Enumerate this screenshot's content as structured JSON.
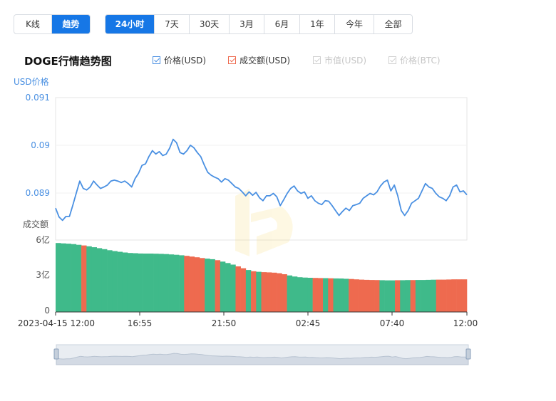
{
  "chart_type_tabs": [
    {
      "label": "K线",
      "active": false
    },
    {
      "label": "趋势",
      "active": true
    }
  ],
  "range_tabs": [
    {
      "label": "24小时",
      "active": true
    },
    {
      "label": "7天",
      "active": false
    },
    {
      "label": "30天",
      "active": false
    },
    {
      "label": "3月",
      "active": false
    },
    {
      "label": "6月",
      "active": false
    },
    {
      "label": "1年",
      "active": false
    },
    {
      "label": "今年",
      "active": false
    },
    {
      "label": "全部",
      "active": false
    }
  ],
  "chart_title": "DOGE行情趋势图",
  "legend": [
    {
      "label": "价格(USD)",
      "checked": true,
      "color": "#4a90e2"
    },
    {
      "label": "成交额(USD)",
      "checked": true,
      "color": "#ee6a4f"
    },
    {
      "label": "市值(USD)",
      "checked": false,
      "color": "#cccccc"
    },
    {
      "label": "价格(BTC)",
      "checked": false,
      "color": "#cccccc"
    }
  ],
  "colors": {
    "price_line": "#4a90e2",
    "volume_up": "#3fba8a",
    "volume_down": "#ee6a4f",
    "accent": "#1677e6",
    "navigator_fill": "#d8dfe8"
  },
  "chart_data": {
    "type": "line",
    "x_tick_labels": [
      "2023-04-15 12:00",
      "16:55",
      "21:50",
      "02:45",
      "07:40",
      "12:00"
    ],
    "price_axis": {
      "label": "USD价格",
      "ticks": [
        "0.091",
        "0.09",
        "0.089"
      ],
      "ylim": [
        0.0881,
        0.091
      ]
    },
    "volume_axis": {
      "label": "成交额",
      "ticks": [
        "6亿",
        "3亿",
        "0"
      ],
      "ylim": [
        0,
        600000000
      ]
    },
    "series": [
      {
        "name": "价格(USD)",
        "values": [
          0.08875,
          0.08857,
          0.0885,
          0.08858,
          0.08858,
          0.08881,
          0.08906,
          0.0893,
          0.08915,
          0.08912,
          0.08918,
          0.0893,
          0.08922,
          0.08915,
          0.08918,
          0.08922,
          0.0893,
          0.08932,
          0.0893,
          0.08927,
          0.0893,
          0.08925,
          0.08918,
          0.08935,
          0.08946,
          0.08962,
          0.08965,
          0.0898,
          0.08992,
          0.08985,
          0.0899,
          0.08982,
          0.08985,
          0.08997,
          0.09015,
          0.09008,
          0.08988,
          0.08985,
          0.08992,
          0.09003,
          0.08998,
          0.08988,
          0.0898,
          0.08963,
          0.08948,
          0.08942,
          0.08938,
          0.08935,
          0.08928,
          0.08935,
          0.08932,
          0.08925,
          0.08918,
          0.08915,
          0.08908,
          0.089,
          0.08908,
          0.08901,
          0.08907,
          0.08896,
          0.0889,
          0.089,
          0.089,
          0.08905,
          0.08898,
          0.0888,
          0.08892,
          0.08905,
          0.08915,
          0.0892,
          0.0891,
          0.08905,
          0.08908,
          0.08895,
          0.089,
          0.0889,
          0.08885,
          0.08882,
          0.0889,
          0.08889,
          0.0888,
          0.0887,
          0.0886,
          0.08868,
          0.08875,
          0.0887,
          0.0888,
          0.08882,
          0.08885,
          0.08895,
          0.089,
          0.08905,
          0.08902,
          0.08908,
          0.0892,
          0.08928,
          0.08932,
          0.0891,
          0.08922,
          0.089,
          0.0887,
          0.0886,
          0.0887,
          0.08885,
          0.0889,
          0.08895,
          0.0891,
          0.08925,
          0.08918,
          0.08915,
          0.08905,
          0.08898,
          0.08895,
          0.0889,
          0.089,
          0.08918,
          0.08922,
          0.08908,
          0.0891,
          0.08902
        ]
      },
      {
        "name": "成交额(USD)",
        "values": [
          575000000,
          572000000,
          570000000,
          566000000,
          560000000,
          555000000,
          548000000,
          540000000,
          532000000,
          524000000,
          515000000,
          508000000,
          502000000,
          496000000,
          492000000,
          490000000,
          488000000,
          487000000,
          487000000,
          486000000,
          485000000,
          483000000,
          480000000,
          477000000,
          473000000,
          468000000,
          462000000,
          456000000,
          450000000,
          445000000,
          440000000,
          432000000,
          420000000,
          408000000,
          395000000,
          380000000,
          365000000,
          350000000,
          340000000,
          335000000,
          332000000,
          330000000,
          328000000,
          323000000,
          315000000,
          305000000,
          296000000,
          290000000,
          287000000,
          285000000,
          284000000,
          283000000,
          282000000,
          281000000,
          280000000,
          279000000,
          277000000,
          275000000,
          272000000,
          270000000,
          268000000,
          267000000,
          266000000,
          265000000,
          264000000,
          264000000,
          265000000,
          265000000,
          266000000,
          266000000,
          267000000,
          267000000,
          268000000,
          269000000,
          270000000,
          270000000,
          271000000,
          272000000,
          272000000,
          272000000
        ],
        "down_indices": [
          5,
          25,
          26,
          27,
          28,
          31,
          35,
          36,
          38,
          40,
          41,
          42,
          43,
          44,
          50,
          51,
          53,
          57,
          58,
          59,
          60,
          61,
          62,
          66,
          69,
          74,
          75,
          76,
          77,
          78,
          79
        ]
      }
    ]
  }
}
